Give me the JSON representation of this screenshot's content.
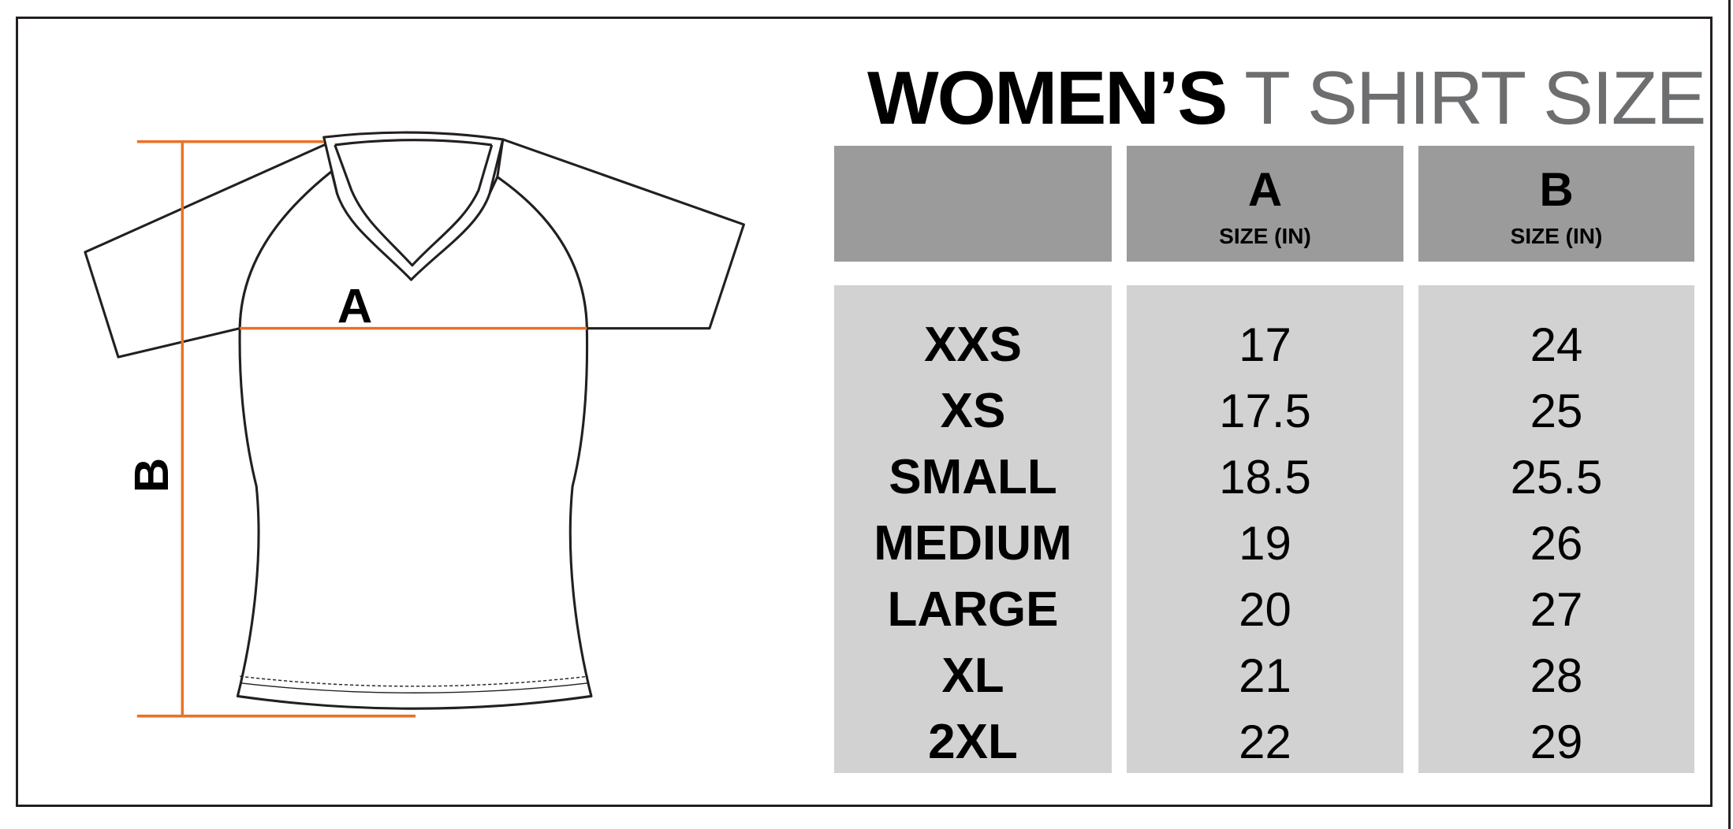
{
  "title": {
    "bold": "WOMEN’S",
    "light": "T SHIRT SIZE"
  },
  "diagram": {
    "label_a": "A",
    "label_b": "B",
    "measure_color": "#e8722a",
    "outline_color": "#231f20"
  },
  "table": {
    "header_fill": "#9b9b9b",
    "body_fill": "#d2d2d2",
    "columns": [
      {
        "letter": "",
        "sub": ""
      },
      {
        "letter": "A",
        "sub": "SIZE (IN)"
      },
      {
        "letter": "B",
        "sub": "SIZE (IN)"
      }
    ],
    "sizes": [
      "XXS",
      "XS",
      "SMALL",
      "MEDIUM",
      "LARGE",
      "XL",
      "2XL"
    ],
    "a_values": [
      "17",
      "17.5",
      "18.5",
      "19",
      "20",
      "21",
      "22"
    ],
    "b_values": [
      "24",
      "25",
      "25.5",
      "26",
      "27",
      "28",
      "29"
    ]
  }
}
